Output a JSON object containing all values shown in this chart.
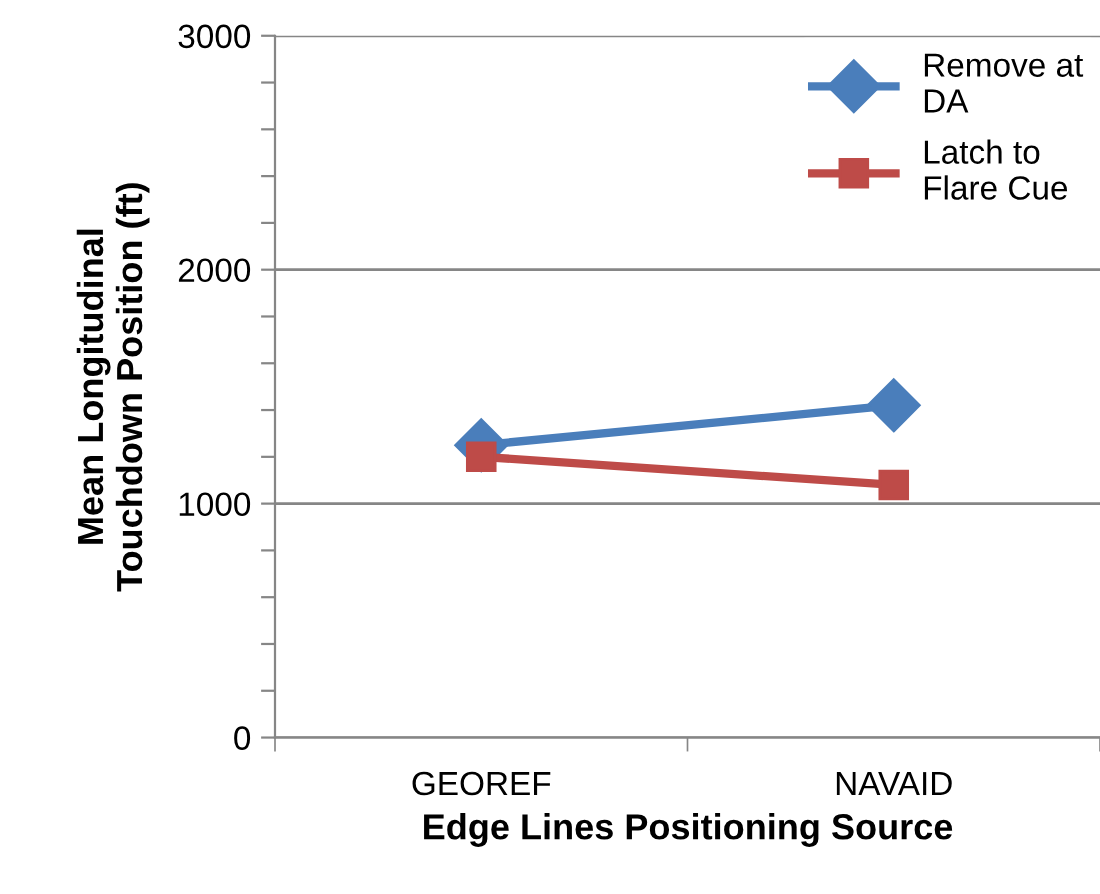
{
  "chart_data": {
    "type": "line",
    "xlabel": "Edge Lines Positioning Source",
    "ylabel": "Mean Longitudinal\nTouchdown Position (ft)",
    "categories": [
      "GEOREF",
      "NAVAID"
    ],
    "series": [
      {
        "name": "Remove at\nDA",
        "color": "#4a7ebb",
        "values": [
          1250,
          1420
        ],
        "marker": "diamond"
      },
      {
        "name": "Latch to\nFlare Cue",
        "color": "#be4b48",
        "values": [
          1200,
          1080
        ],
        "marker": "square"
      }
    ],
    "ylim": [
      0,
      3000
    ],
    "yticks": [
      0,
      {
        "value": 200,
        "label": null
      },
      {
        "value": 400,
        "label": null
      },
      {
        "value": 600,
        "label": null
      },
      {
        "value": 800,
        "label": null
      },
      1000,
      {
        "value": 1200,
        "label": null
      },
      {
        "value": 1400,
        "label": null
      },
      {
        "value": 1600,
        "label": null
      },
      {
        "value": 1800,
        "label": null
      },
      2000,
      {
        "value": 2200,
        "label": null
      },
      {
        "value": 2400,
        "label": null
      },
      {
        "value": 2600,
        "label": null
      },
      {
        "value": 2800,
        "label": null
      },
      3000
    ],
    "grid": "y",
    "legend": "top right",
    "line_style": "solid"
  }
}
